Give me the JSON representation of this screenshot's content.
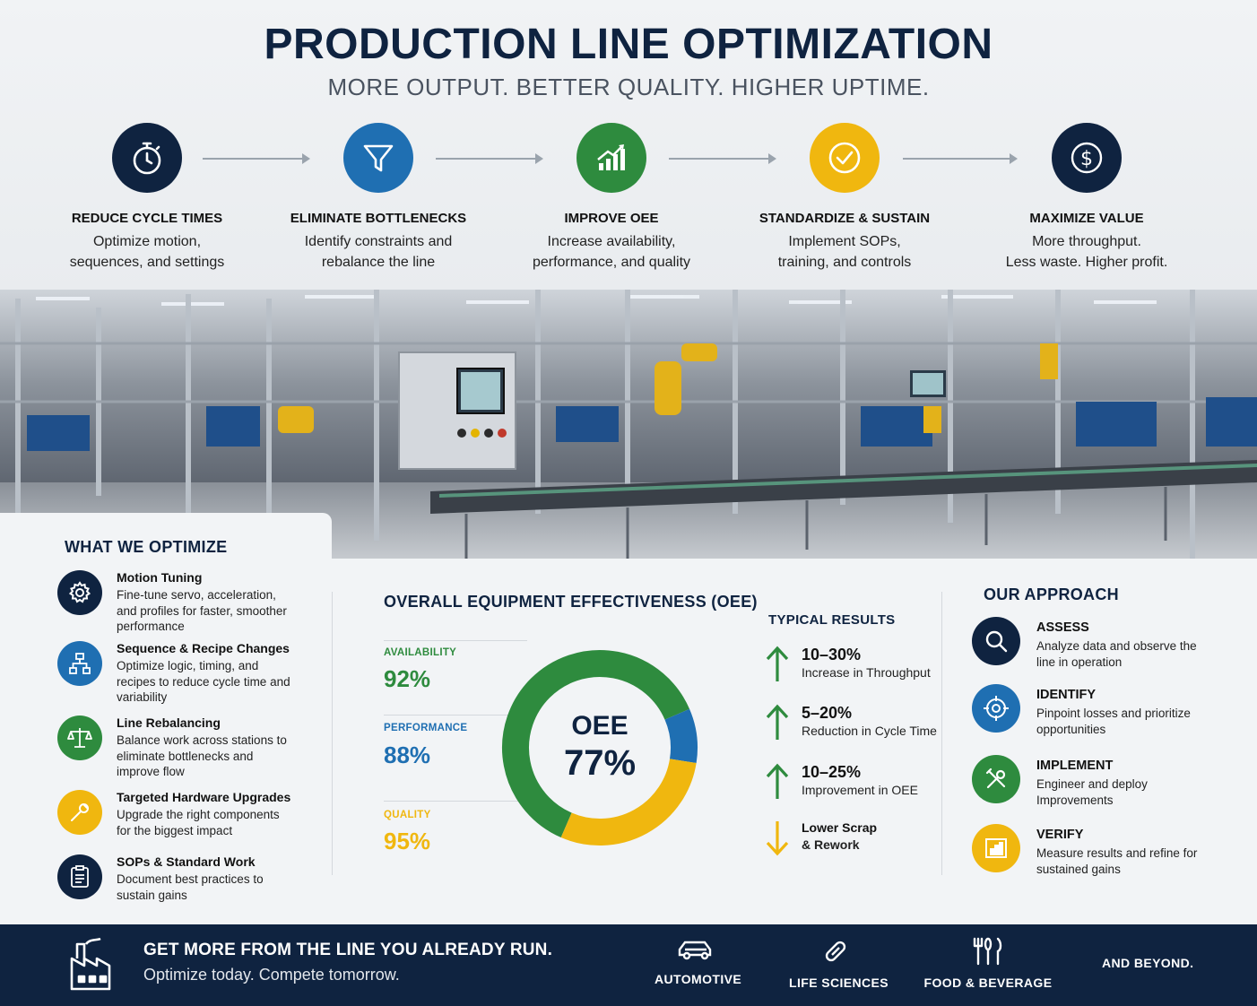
{
  "header": {
    "title": "PRODUCTION LINE OPTIMIZATION",
    "subtitle": "MORE OUTPUT. BETTER QUALITY. HIGHER UPTIME."
  },
  "steps": [
    {
      "title": "REDUCE CYCLE TIMES",
      "line1": "Optimize motion,",
      "line2": "sequences, and settings",
      "icon": "stopwatch-icon",
      "color": "#0f2340"
    },
    {
      "title": "ELIMINATE BOTTLENECKS",
      "line1": "Identify constraints and",
      "line2": "rebalance the line",
      "icon": "funnel-icon",
      "color": "#1f6fb2"
    },
    {
      "title": "IMPROVE OEE",
      "line1": "Increase availability,",
      "line2": "performance, and quality",
      "icon": "chart-up-icon",
      "color": "#2e8b3e"
    },
    {
      "title": "STANDARDIZE & SUSTAIN",
      "line1": "Implement SOPs,",
      "line2": "training, and controls",
      "icon": "check-icon",
      "color": "#f0b70f"
    },
    {
      "title": "MAXIMIZE VALUE",
      "line1": "More throughput.",
      "line2": "Less waste. Higher profit.",
      "icon": "dollar-icon",
      "color": "#0f2340"
    }
  ],
  "optimize": {
    "heading": "WHAT WE OPTIMIZE",
    "items": [
      {
        "title": "Motion Tuning",
        "desc": "Fine-tune servo, acceleration, and profiles for faster, smoother performance",
        "icon": "gear-icon",
        "color": "#0f2340"
      },
      {
        "title": "Sequence & Recipe Changes",
        "desc": "Optimize logic, timing, and recipes to reduce cycle time and variability",
        "icon": "flowchart-icon",
        "color": "#1f6fb2"
      },
      {
        "title": "Line Rebalancing",
        "desc": "Balance work across stations to eliminate bottlenecks and improve flow",
        "icon": "balance-scale-icon",
        "color": "#2e8b3e"
      },
      {
        "title": "Targeted Hardware Upgrades",
        "desc": "Upgrade the right components for the biggest impact",
        "icon": "wrench-icon",
        "color": "#f0b70f"
      },
      {
        "title": "SOPs & Standard Work",
        "desc": "Document best practices to sustain gains",
        "icon": "clipboard-icon",
        "color": "#0f2340"
      }
    ]
  },
  "oee": {
    "heading": "OVERALL EQUIPMENT EFFECTIVENESS (OEE)",
    "center_label": "OEE",
    "center_value": "77%",
    "metrics": [
      {
        "label": "AVAILABILITY",
        "value": "92%",
        "color": "#2e8b3e"
      },
      {
        "label": "PERFORMANCE",
        "value": "88%",
        "color": "#1f6fb2"
      },
      {
        "label": "QUALITY",
        "value": "95%",
        "color": "#f0b70f"
      }
    ]
  },
  "chart_data": {
    "type": "pie",
    "title": "OEE",
    "segments": [
      {
        "label": "AVAILABILITY",
        "share": 0.62,
        "color": "#2e8b3e"
      },
      {
        "label": "PERFORMANCE",
        "share": 0.09,
        "color": "#1f6fb2"
      },
      {
        "label": "QUALITY",
        "share": 0.29,
        "color": "#f0b70f"
      }
    ]
  },
  "results": {
    "heading": "TYPICAL RESULTS",
    "items": [
      {
        "title": "10–30%",
        "desc": "Increase in Throughput",
        "direction": "up",
        "color": "#2e8b3e"
      },
      {
        "title": "5–20%",
        "desc": "Reduction in Cycle Time",
        "direction": "up",
        "color": "#2e8b3e"
      },
      {
        "title": "10–25%",
        "desc": "Improvement in OEE",
        "direction": "up",
        "color": "#2e8b3e"
      },
      {
        "title": "Lower Scrap",
        "desc": "& Rework",
        "direction": "down",
        "color": "#f0b70f"
      }
    ]
  },
  "approach": {
    "heading": "OUR APPROACH",
    "items": [
      {
        "title": "ASSESS",
        "desc": "Analyze data and observe the line in operation",
        "icon": "magnifier-icon",
        "color": "#0f2340"
      },
      {
        "title": "IDENTIFY",
        "desc": "Pinpoint losses and prioritize opportunities",
        "icon": "target-icon",
        "color": "#1f6fb2"
      },
      {
        "title": "IMPLEMENT",
        "desc": "Engineer and deploy Improvements",
        "icon": "tools-icon",
        "color": "#2e8b3e"
      },
      {
        "title": "VERIFY",
        "desc": "Measure results and refine for sustained gains",
        "icon": "bar-chart-icon",
        "color": "#f0b70f"
      }
    ]
  },
  "footer": {
    "headline": "GET MORE FROM THE LINE YOU ALREADY RUN.",
    "tagline": "Optimize today. Compete tomorrow.",
    "industries": [
      {
        "label": "AUTOMOTIVE",
        "icon": "car-icon"
      },
      {
        "label": "LIFE SCIENCES",
        "icon": "capsule-icon"
      },
      {
        "label": "FOOD & BEVERAGE",
        "icon": "utensils-icon"
      }
    ],
    "beyond": "AND BEYOND."
  }
}
